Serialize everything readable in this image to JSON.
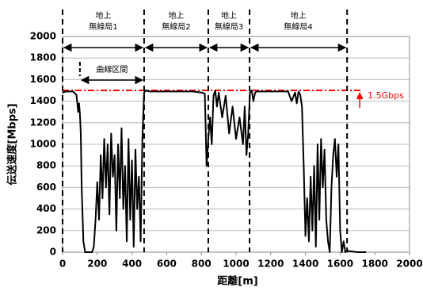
{
  "chart_data": {
    "type": "line",
    "xlabel": "距離[m]",
    "ylabel": "伝送速度[Mbps]",
    "xlim": [
      0,
      2000
    ],
    "xticks": [
      0,
      200,
      400,
      600,
      800,
      1000,
      1200,
      1400,
      1600,
      1800,
      2000
    ],
    "ylim": [
      0,
      2000
    ],
    "yticks": [
      0,
      200,
      400,
      600,
      800,
      1000,
      1200,
      1400,
      1600,
      1800,
      2000
    ],
    "grid": true,
    "series": [
      {
        "color": "#000000",
        "x": [
          0,
          20,
          40,
          60,
          80,
          90,
          95,
          100,
          105,
          110,
          120,
          130,
          150,
          170,
          180,
          190,
          200,
          210,
          220,
          230,
          240,
          250,
          260,
          270,
          280,
          290,
          300,
          310,
          320,
          330,
          340,
          350,
          360,
          370,
          380,
          390,
          400,
          410,
          420,
          430,
          440,
          450,
          460,
          470,
          480,
          500,
          550,
          600,
          650,
          700,
          750,
          800,
          820,
          830,
          840,
          850,
          860,
          870,
          880,
          890,
          900,
          920,
          940,
          960,
          980,
          1000,
          1020,
          1040,
          1050,
          1060,
          1070,
          1080,
          1090,
          1100,
          1110,
          1120,
          1150,
          1200,
          1250,
          1300,
          1320,
          1340,
          1350,
          1360,
          1370,
          1380,
          1390,
          1400,
          1410,
          1420,
          1430,
          1440,
          1450,
          1460,
          1470,
          1480,
          1490,
          1500,
          1510,
          1520,
          1530,
          1540,
          1550,
          1560,
          1570,
          1580,
          1590,
          1600,
          1610,
          1620,
          1630,
          1640,
          1650,
          1700,
          1750
        ],
        "values": [
          1480,
          1490,
          1490,
          1490,
          1460,
          1300,
          1380,
          1280,
          1100,
          600,
          100,
          0,
          0,
          0,
          50,
          300,
          650,
          300,
          900,
          500,
          1050,
          600,
          1000,
          350,
          1100,
          700,
          900,
          200,
          1000,
          500,
          1150,
          400,
          800,
          100,
          1050,
          300,
          850,
          50,
          950,
          400,
          700,
          100,
          1050,
          1480,
          1500,
          1490,
          1490,
          1490,
          1490,
          1490,
          1490,
          1480,
          1470,
          800,
          1050,
          1250,
          1000,
          1450,
          1500,
          1350,
          1480,
          1250,
          1450,
          1100,
          1350,
          1050,
          1250,
          1000,
          1350,
          900,
          1100,
          1480,
          1500,
          1400,
          1480,
          1490,
          1490,
          1490,
          1490,
          1490,
          1400,
          1480,
          1380,
          1490,
          1460,
          1350,
          800,
          150,
          500,
          100,
          700,
          200,
          800,
          50,
          1000,
          300,
          1050,
          600,
          950,
          300,
          100,
          0,
          600,
          900,
          1050,
          700,
          1000,
          200,
          0,
          100,
          0,
          10,
          10,
          0,
          0
        ]
      }
    ],
    "stations": [
      {
        "lines": [
          "地上",
          "無線局1"
        ],
        "start": 0,
        "end": 470
      },
      {
        "lines": [
          "地上",
          "無線局2"
        ],
        "start": 470,
        "end": 840
      },
      {
        "lines": [
          "地上",
          "無線局3"
        ],
        "start": 840,
        "end": 1078
      },
      {
        "lines": [
          "地上",
          "無線局4"
        ],
        "start": 1078,
        "end": 1640
      }
    ],
    "curve_section": {
      "label": "曲線区間",
      "start": 100,
      "end": 470
    },
    "threshold": {
      "value": 1500,
      "label": "1.5Gbps",
      "color": "#ff0000"
    }
  }
}
